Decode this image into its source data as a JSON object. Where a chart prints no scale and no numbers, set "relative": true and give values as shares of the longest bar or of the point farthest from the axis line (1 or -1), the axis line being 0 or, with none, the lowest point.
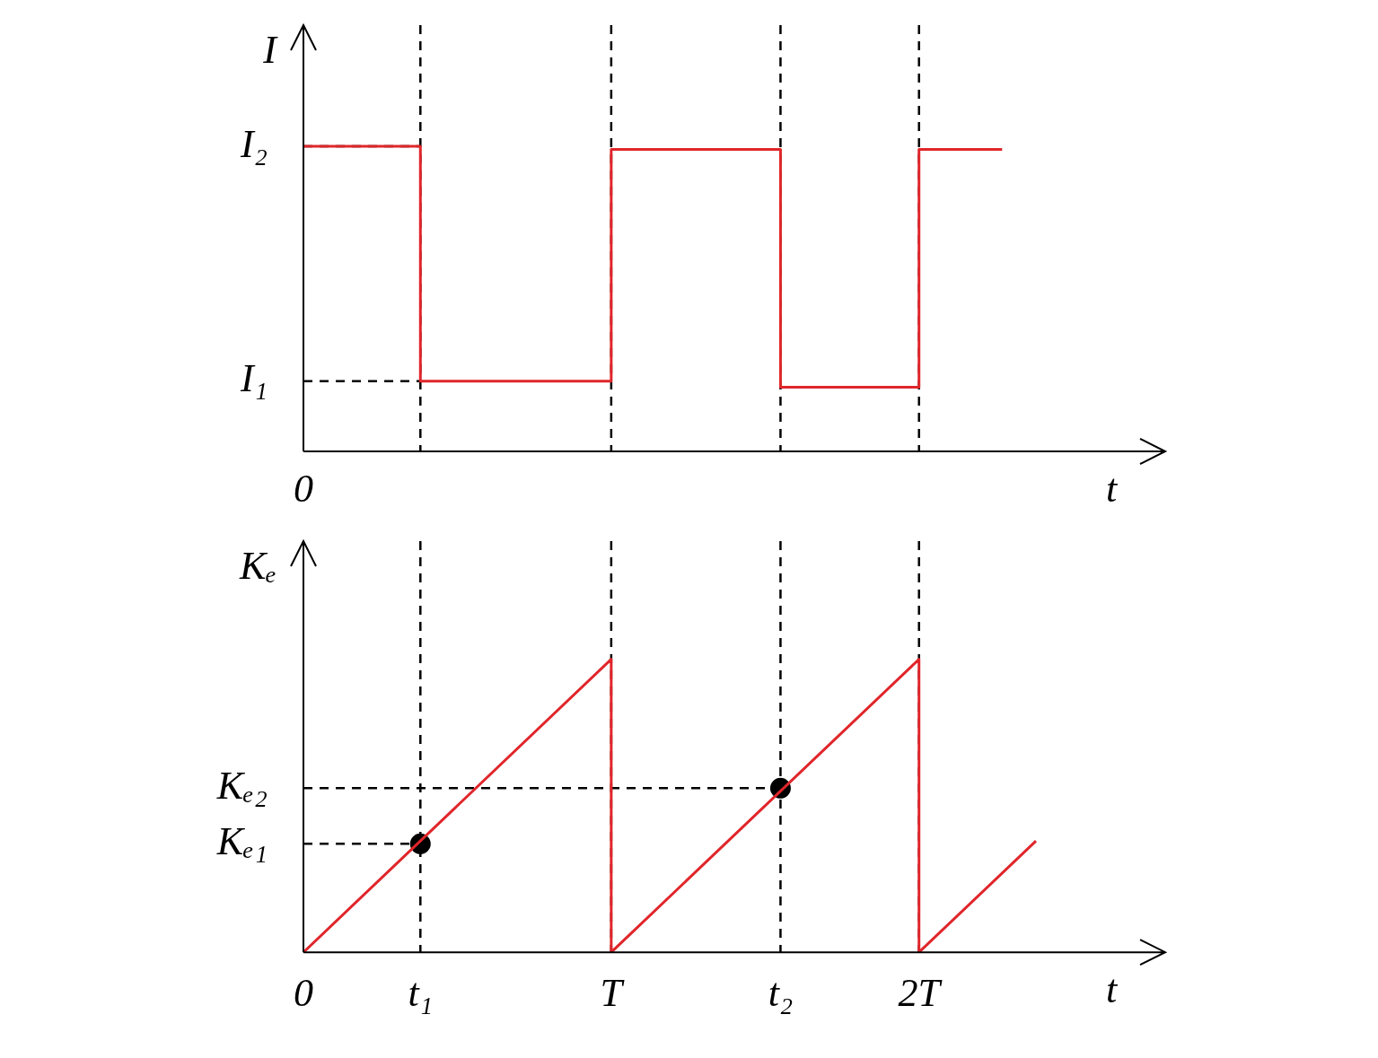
{
  "chart_data": [
    {
      "type": "line",
      "ylabel": "I",
      "xlabel": "t",
      "relative": true,
      "xlim": [
        0,
        2.8
      ],
      "series": [
        {
          "color": "#e0262b",
          "x": [
            0,
            0.38,
            0.38,
            1,
            1,
            1.55,
            1.55,
            2,
            2,
            2.27
          ],
          "values": [
            1,
            1,
            0.23,
            0.23,
            0.99,
            0.99,
            0.21,
            0.21,
            0.99,
            0.99
          ]
        }
      ],
      "ref_lines": [
        {
          "axis": "x",
          "value": 0.38,
          "color": "#000000",
          "line_style": "dashed"
        },
        {
          "axis": "x",
          "value": 1,
          "color": "#000000",
          "line_style": "dashed"
        },
        {
          "axis": "x",
          "value": 1.55,
          "color": "#000000",
          "line_style": "dashed"
        },
        {
          "axis": "x",
          "value": 2,
          "color": "#000000",
          "line_style": "dashed"
        },
        {
          "axis": "y",
          "value": 1,
          "label": "I₂",
          "color": "#000000",
          "line_style": "dashed"
        },
        {
          "axis": "y",
          "value": 0.23,
          "label": "I₁",
          "color": "#000000",
          "line_style": "dashed"
        }
      ],
      "annotations": [
        "0"
      ]
    },
    {
      "type": "line",
      "ylabel": "Kₑ",
      "xlabel": "t",
      "relative": true,
      "xlim": [
        0,
        2.8
      ],
      "xticks": [
        {
          "value": 0,
          "label": "0"
        },
        {
          "value": 0.38,
          "label": "t₁"
        },
        {
          "value": 1,
          "label": "T"
        },
        {
          "value": 1.55,
          "label": "t₂"
        },
        {
          "value": 2,
          "label": "2T"
        }
      ],
      "series": [
        {
          "color": "#e0262b",
          "x": [
            0,
            1,
            1,
            2,
            2,
            2.38
          ],
          "values": [
            0,
            1,
            0,
            1,
            0,
            0.38
          ]
        },
        {
          "type": "scatter",
          "marker": "circle",
          "color": "#000000",
          "x": [
            0.38,
            1.55
          ],
          "values": [
            0.37,
            0.56
          ]
        }
      ],
      "ref_lines": [
        {
          "axis": "x",
          "value": 0.38,
          "color": "#000000",
          "line_style": "dashed"
        },
        {
          "axis": "x",
          "value": 1,
          "color": "#000000",
          "line_style": "dashed"
        },
        {
          "axis": "x",
          "value": 1.55,
          "color": "#000000",
          "line_style": "dashed"
        },
        {
          "axis": "x",
          "value": 2,
          "color": "#000000",
          "line_style": "dashed"
        },
        {
          "axis": "y",
          "value": 0.56,
          "label": "Kₑ₂",
          "color": "#000000",
          "line_style": "dashed"
        },
        {
          "axis": "y",
          "value": 0.37,
          "label": "Kₑ₁",
          "color": "#000000",
          "line_style": "dashed"
        }
      ]
    }
  ]
}
